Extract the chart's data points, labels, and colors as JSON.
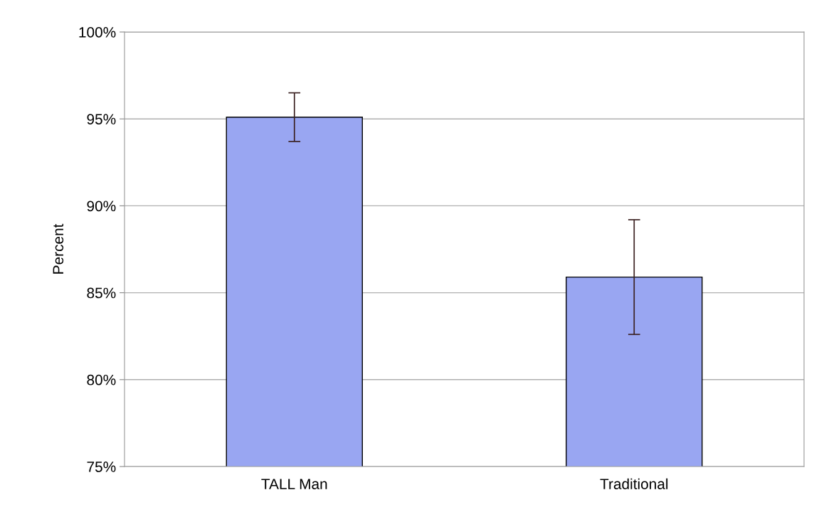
{
  "chart_data": {
    "type": "bar",
    "ylabel": "Percent",
    "categories": [
      "TALL Man",
      "Traditional"
    ],
    "values": [
      95.1,
      85.9
    ],
    "errors": [
      1.4,
      3.3
    ],
    "color": "#99a6f2",
    "ylim": [
      75,
      100
    ],
    "yticks": [
      {
        "value": 75,
        "label": "75%"
      },
      {
        "value": 80,
        "label": "80%"
      },
      {
        "value": 85,
        "label": "85%"
      },
      {
        "value": 90,
        "label": "90%"
      },
      {
        "value": 95,
        "label": "95%"
      },
      {
        "value": 100,
        "label": "100%"
      }
    ],
    "grid": "y",
    "legend": false
  }
}
